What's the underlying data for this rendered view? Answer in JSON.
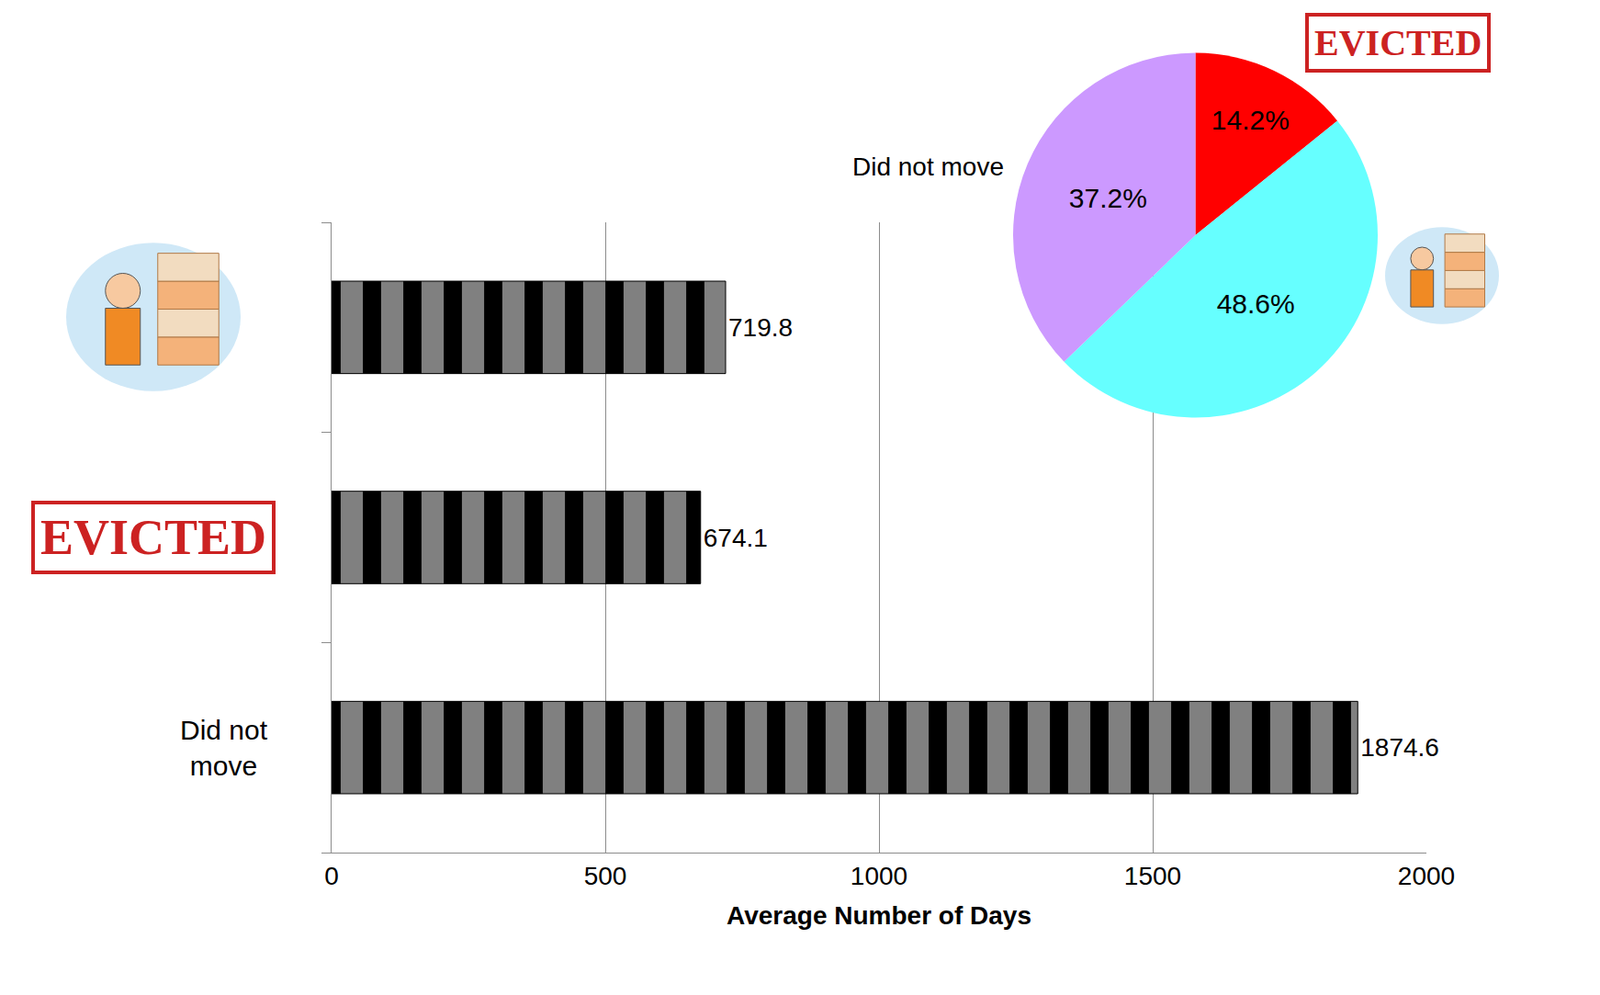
{
  "chart_data": [
    {
      "type": "bar",
      "orientation": "horizontal",
      "categories": [
        null,
        "EVICTED",
        "Did not move"
      ],
      "values": [
        719.8,
        674.1,
        1874.6
      ],
      "color": "#000000",
      "x_label": "Average Number of Days",
      "xlim": [
        0,
        2000
      ],
      "xticks": [
        0,
        500,
        1000,
        1500,
        2000
      ],
      "grid": true,
      "data_labels": true
    },
    {
      "type": "pie",
      "categories": [
        "EVICTED",
        null,
        "Did not move"
      ],
      "values": [
        14.2,
        48.6,
        37.2
      ],
      "value_labels": [
        "14.2%",
        "48.6%",
        "37.2%"
      ],
      "colors": [
        "#ff0000",
        "#66ffff",
        "#cc99ff"
      ],
      "data_labels": true
    }
  ]
}
